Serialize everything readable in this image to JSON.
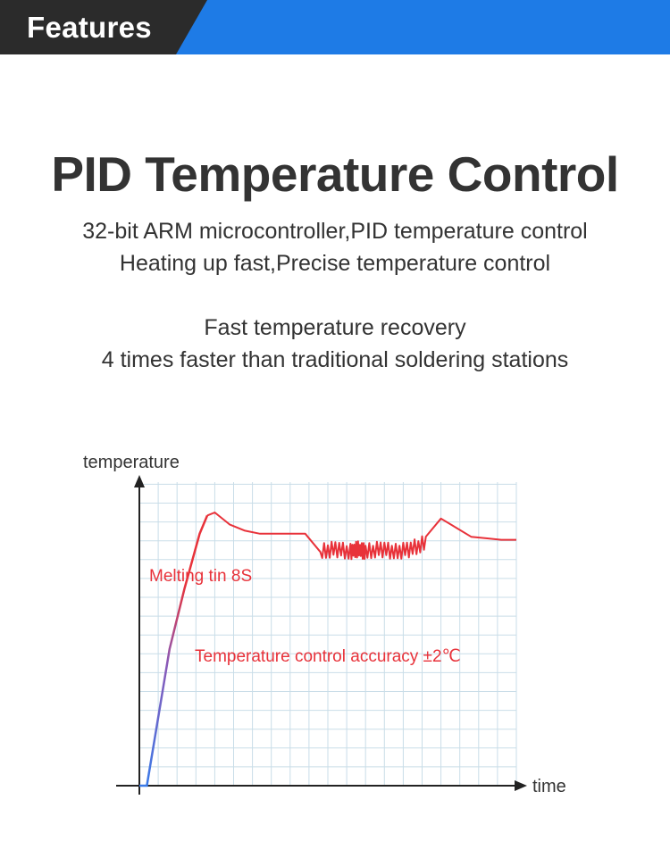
{
  "header": {
    "title": "Features"
  },
  "headline": "PID Temperature Control",
  "intro_lines": [
    "32-bit ARM microcontroller,PID temperature control",
    "Heating up fast,Precise temperature control"
  ],
  "recovery_lines": [
    "Fast temperature recovery",
    "4 times faster than traditional soldering stations"
  ],
  "colors": {
    "header_dark": "#2b2b2b",
    "header_blue": "#1e7be6",
    "curve_red": "#e8323a",
    "curve_blue": "#3a7ae8",
    "grid": "#c9dde8",
    "annotation": "#e8323a"
  },
  "chart_data": {
    "type": "line",
    "title": "",
    "xlabel": "time",
    "ylabel": "temperature",
    "grid": true,
    "annotations": [
      "Melting tin 8S",
      "Temperature control accuracy ±2℃"
    ],
    "series": [
      {
        "values_description_free": true,
        "x": [
          0,
          0.5,
          1,
          2,
          3,
          4,
          4.5,
          5,
          6,
          7,
          8,
          9,
          10,
          11,
          12,
          13,
          14,
          14.5,
          15,
          16,
          17,
          18,
          19,
          20,
          21,
          22,
          23,
          24,
          25
        ],
        "y": [
          0,
          0,
          1.5,
          4.5,
          6.5,
          8.3,
          8.9,
          9.0,
          8.6,
          8.4,
          8.3,
          8.3,
          8.3,
          8.3,
          7.7,
          7.8,
          7.7,
          7.8,
          7.7,
          7.8,
          7.7,
          7.8,
          8.0,
          8.8,
          8.5,
          8.2,
          8.15,
          8.1,
          8.1
        ]
      }
    ]
  }
}
